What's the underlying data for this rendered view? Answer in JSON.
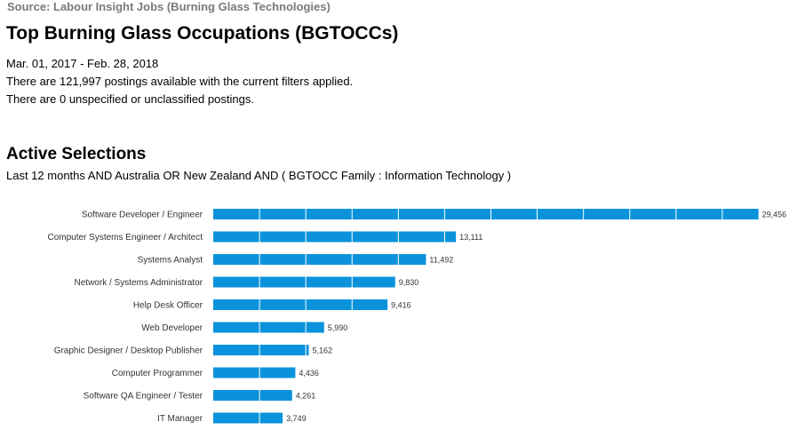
{
  "header": {
    "source": "Source: Labour Insight Jobs (Burning Glass Technologies)",
    "title": "Top Burning Glass Occupations (BGTOCCs)",
    "date_range": "Mar.  01, 2017  - Feb.  28, 2018",
    "postings_line": "There are 121,997 postings available with the current filters applied.",
    "unclassified_line": "There are 0 unspecified or unclassified postings."
  },
  "selections": {
    "heading": "Active Selections",
    "filter_text": "Last 12 months AND Australia OR New Zealand AND ( BGTOCC Family : Information Technology )"
  },
  "chart_data": {
    "type": "bar",
    "orientation": "horizontal",
    "bar_color": "#0a93db",
    "grid": true,
    "xlim": [
      0,
      30000
    ],
    "categories": [
      "Software Developer / Engineer",
      "Computer Systems Engineer / Architect",
      "Systems Analyst",
      "Network / Systems Administrator",
      "Help Desk Officer",
      "Web Developer",
      "Graphic Designer / Desktop Publisher",
      "Computer Programmer",
      "Software QA Engineer / Tester",
      "IT Manager"
    ],
    "values": [
      29456,
      13111,
      11492,
      9830,
      9416,
      5990,
      5162,
      4436,
      4261,
      3749
    ],
    "value_labels": [
      "29,456",
      "13,111",
      "11,492",
      "9,830",
      "9,416",
      "5,990",
      "5,162",
      "4,436",
      "4,261",
      "3,749"
    ]
  }
}
